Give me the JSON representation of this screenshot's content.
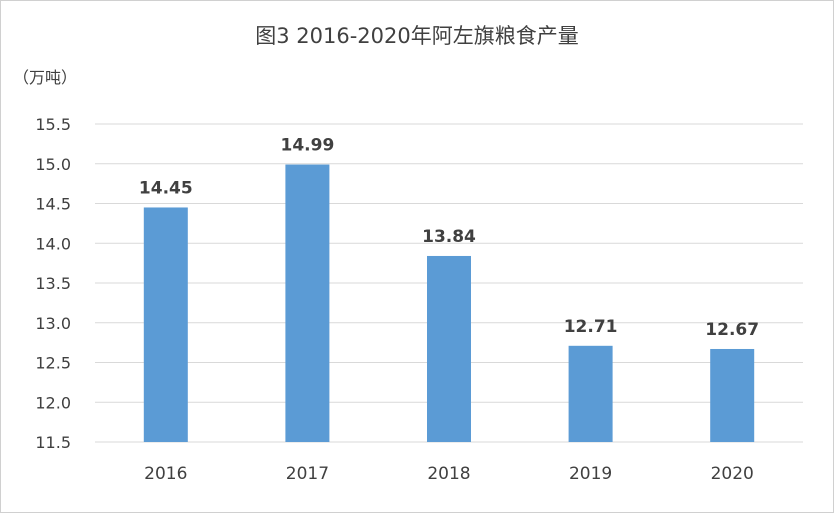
{
  "chart_data": {
    "type": "bar",
    "title": "图3 2016-2020年阿左旗粮食产量",
    "unit_label": "（万吨）",
    "categories": [
      "2016",
      "2017",
      "2018",
      "2019",
      "2020"
    ],
    "values": [
      14.45,
      14.99,
      13.84,
      12.71,
      12.67
    ],
    "data_labels": [
      "14.45",
      "14.99",
      "13.84",
      "12.71",
      "12.67"
    ],
    "yticks": [
      "11.5",
      "12.0",
      "12.5",
      "13.0",
      "13.5",
      "14.0",
      "14.5",
      "15.0",
      "15.5"
    ],
    "ylim": [
      11.5,
      15.5
    ],
    "grid": true,
    "legend": "none",
    "bar_color": "#5b9bd5"
  }
}
